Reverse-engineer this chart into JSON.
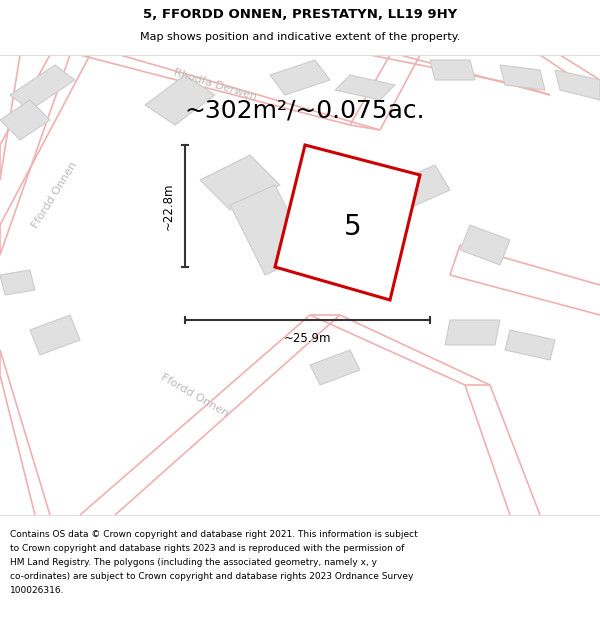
{
  "title": "5, FFORDD ONNEN, PRESTATYN, LL19 9HY",
  "subtitle": "Map shows position and indicative extent of the property.",
  "area_text": "~302m²/~0.075ac.",
  "width_label": "~25.9m",
  "height_label": "~22.8m",
  "plot_number": "5",
  "footer_lines": [
    "Contains OS data © Crown copyright and database right 2021. This information is subject",
    "to Crown copyright and database rights 2023 and is reproduced with the permission of",
    "HM Land Registry. The polygons (including the associated geometry, namely x, y",
    "co-ordinates) are subject to Crown copyright and database rights 2023 Ordnance Survey",
    "100026316."
  ],
  "map_bg": "#f7f6f5",
  "plot_fill": "#ffffff",
  "plot_inner_fill": "#e0e0e0",
  "plot_border_color": "#cc0000",
  "plot_border_lw": 2.2,
  "road_line_color": "#f0b0b0",
  "road_line_lw": 1.0,
  "building_fill": "#e0e0e0",
  "building_edge": "#cccccc",
  "building_lw": 0.8,
  "street_label_color": "#c0b8b8",
  "dim_color": "#333333",
  "dim_lw": 1.5,
  "title_fontsize": 9.5,
  "subtitle_fontsize": 8.0,
  "area_fontsize": 18,
  "plot_num_fontsize": 20,
  "dim_label_fontsize": 8.5,
  "footer_fontsize": 6.5,
  "street_fontsize": 8.0
}
